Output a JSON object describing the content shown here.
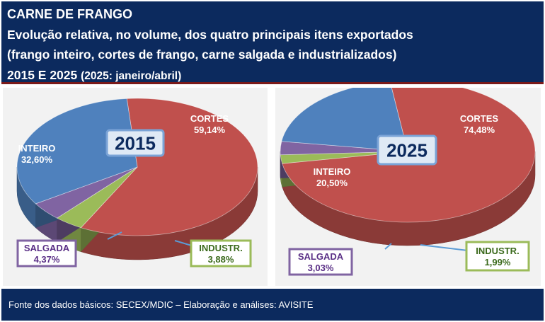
{
  "header": {
    "line1": "CARNE DE FRANGO",
    "line2": "Evolução relativa, no volume, dos quatro principais itens exportados",
    "line3": "(frango inteiro, cortes de frango, carne salgada e industrializados)",
    "line4_main": "2015 E 2025",
    "line4_sub": "(2025: janeiro/abril)"
  },
  "footer": {
    "text": "Fonte dos dados básicos: SECEX/MDIC – Elaboração e análises: AVISITE"
  },
  "colors": {
    "cortes": "#c0504d",
    "inteiro": "#4f81bd",
    "salgada": "#8064a2",
    "industr": "#9bbb59",
    "header_bg": "#0c2a5e"
  },
  "chart_data": [
    {
      "type": "pie",
      "title": "2015",
      "categories": [
        "CORTES",
        "INTEIRO",
        "SALGADA",
        "INDUSTR."
      ],
      "values": [
        59.14,
        32.6,
        4.37,
        3.88
      ],
      "value_labels": [
        "59,14%",
        "32,60%",
        "4,37%",
        "3,88%"
      ]
    },
    {
      "type": "pie",
      "title": "2025",
      "categories": [
        "CORTES",
        "INTEIRO",
        "SALGADA",
        "INDUSTR."
      ],
      "values": [
        74.48,
        20.5,
        3.03,
        1.99
      ],
      "value_labels": [
        "74,48%",
        "20,50%",
        "3,03%",
        "1,99%"
      ]
    }
  ]
}
